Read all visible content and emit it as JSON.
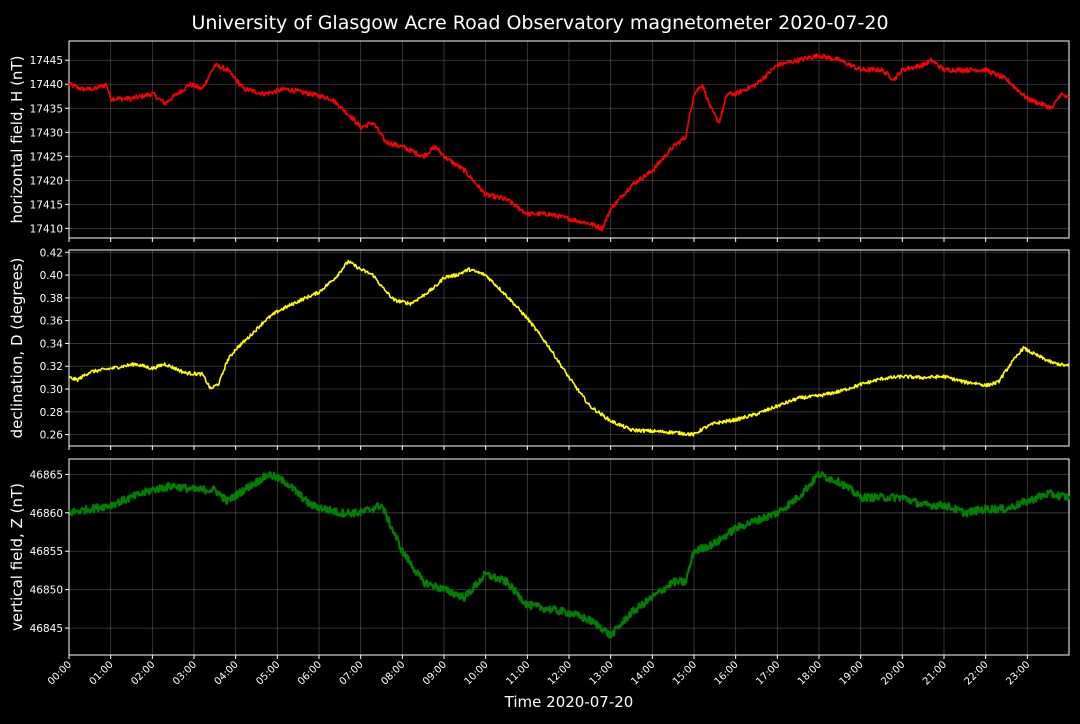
{
  "chart_data": {
    "type": "line",
    "title": "University of Glasgow Acre Road Observatory magnetometer 2020-07-20",
    "xlabel": "Time 2020-07-20",
    "x_unit": "hours",
    "xlim": [
      0,
      24
    ],
    "xticks": [
      "00:00",
      "01:00",
      "02:00",
      "03:00",
      "04:00",
      "05:00",
      "06:00",
      "07:00",
      "08:00",
      "09:00",
      "10:00",
      "11:00",
      "12:00",
      "13:00",
      "14:00",
      "15:00",
      "16:00",
      "17:00",
      "18:00",
      "19:00",
      "20:00",
      "21:00",
      "22:00",
      "23:00"
    ],
    "grid": true,
    "panels": [
      {
        "ylabel": "horizontal field, H (nT)",
        "color": "#ff0000",
        "ylim": [
          17408,
          17449
        ],
        "yticks": [
          17410,
          17415,
          17420,
          17425,
          17430,
          17435,
          17440,
          17445
        ],
        "noise": 0.5,
        "x": [
          0,
          0.3,
          0.6,
          0.9,
          1.0,
          1.5,
          2.0,
          2.3,
          2.6,
          2.9,
          3.2,
          3.5,
          3.8,
          4.2,
          4.7,
          5.2,
          5.8,
          6.3,
          6.8,
          7.0,
          7.3,
          7.6,
          8.0,
          8.5,
          8.8,
          9.0,
          9.5,
          10.0,
          10.5,
          11.0,
          11.5,
          12.0,
          12.5,
          12.8,
          13.0,
          13.5,
          14.0,
          14.5,
          14.8,
          15.0,
          15.2,
          15.4,
          15.6,
          15.8,
          16.0,
          16.5,
          17.0,
          17.5,
          18.0,
          18.5,
          19.0,
          19.5,
          19.8,
          20.0,
          20.5,
          20.7,
          21.0,
          21.5,
          22.0,
          22.5,
          23.0,
          23.3,
          23.6,
          23.8,
          24.0
        ],
        "y": [
          17440,
          17439,
          17439,
          17440,
          17437,
          17437,
          17438,
          17436,
          17438,
          17440,
          17439,
          17444,
          17443,
          17439,
          17438,
          17439,
          17438,
          17437,
          17433,
          17431,
          17432,
          17428,
          17427,
          17425,
          17427,
          17425,
          17422,
          17417,
          17416,
          17413,
          17413,
          17412,
          17411,
          17410,
          17414,
          17419,
          17422,
          17427,
          17429,
          17438,
          17440,
          17435,
          17432,
          17438,
          17438,
          17440,
          17444,
          17445,
          17446,
          17445,
          17443,
          17443,
          17441,
          17443,
          17444,
          17445,
          17443,
          17443,
          17443,
          17441,
          17437,
          17436,
          17435,
          17438,
          17437
        ]
      },
      {
        "ylabel": "declination, D (degrees)",
        "color": "#ffff00",
        "ylim": [
          0.25,
          0.422
        ],
        "yticks": [
          0.26,
          0.28,
          0.3,
          0.32,
          0.34,
          0.36,
          0.38,
          0.4,
          0.42
        ],
        "tick_format": "0.00",
        "noise": 0.0015,
        "x": [
          0,
          0.2,
          0.5,
          1.0,
          1.6,
          2.0,
          2.3,
          2.8,
          3.2,
          3.4,
          3.6,
          3.8,
          4.0,
          4.3,
          4.7,
          5.0,
          5.5,
          6.0,
          6.4,
          6.7,
          7.0,
          7.3,
          7.5,
          7.8,
          8.2,
          8.5,
          8.8,
          9.0,
          9.3,
          9.6,
          10.0,
          10.5,
          11.0,
          11.5,
          12.0,
          12.5,
          13.0,
          13.5,
          14.0,
          14.5,
          15.0,
          15.2,
          15.5,
          16.0,
          16.5,
          17.0,
          17.5,
          18.0,
          18.5,
          19.0,
          19.5,
          20.0,
          20.5,
          21.0,
          21.5,
          21.8,
          22.0,
          22.3,
          22.6,
          22.9,
          23.2,
          23.6,
          24.0
        ],
        "y": [
          0.31,
          0.308,
          0.315,
          0.318,
          0.322,
          0.318,
          0.322,
          0.314,
          0.313,
          0.3,
          0.305,
          0.325,
          0.335,
          0.345,
          0.36,
          0.368,
          0.377,
          0.385,
          0.398,
          0.412,
          0.405,
          0.4,
          0.39,
          0.378,
          0.375,
          0.382,
          0.39,
          0.398,
          0.4,
          0.405,
          0.4,
          0.382,
          0.362,
          0.338,
          0.31,
          0.285,
          0.272,
          0.264,
          0.263,
          0.262,
          0.26,
          0.265,
          0.27,
          0.273,
          0.278,
          0.285,
          0.292,
          0.294,
          0.298,
          0.304,
          0.309,
          0.311,
          0.31,
          0.311,
          0.306,
          0.305,
          0.303,
          0.306,
          0.322,
          0.336,
          0.33,
          0.323,
          0.32
        ]
      },
      {
        "ylabel": "vertical field, Z (nT)",
        "color": "#008000",
        "ylim": [
          46841.5,
          46867.0
        ],
        "yticks": [
          46845,
          46850,
          46855,
          46860,
          46865
        ],
        "noise": 0.5,
        "x": [
          0,
          0.5,
          1.0,
          1.5,
          2.0,
          2.5,
          3.0,
          3.5,
          3.8,
          4.2,
          4.8,
          5.2,
          5.8,
          6.5,
          7.0,
          7.5,
          8.0,
          8.5,
          9.0,
          9.5,
          10.0,
          10.5,
          11.0,
          11.5,
          12.0,
          12.5,
          12.8,
          13.0,
          13.5,
          14.0,
          14.5,
          14.8,
          15.0,
          15.5,
          16.0,
          16.5,
          17.0,
          17.5,
          18.0,
          18.5,
          19.0,
          19.5,
          20.0,
          20.5,
          21.0,
          21.5,
          22.0,
          22.5,
          23.0,
          23.5,
          24.0
        ],
        "y": [
          46860,
          46860.5,
          46861,
          46862,
          46863,
          46863.5,
          46863,
          46863,
          46861.5,
          46863,
          46865,
          46864,
          46861,
          46860,
          46860,
          46861,
          46855,
          46851,
          46850,
          46849,
          46852,
          46851,
          46848,
          46847.5,
          46847,
          46846,
          46845,
          46844,
          46847,
          46849,
          46851,
          46851,
          46855,
          46856,
          46858,
          46859,
          46860,
          46862,
          46865,
          46864,
          46862,
          46862,
          46862,
          46861,
          46861,
          46860,
          46860.5,
          46860.5,
          46861.5,
          46862.5,
          46862
        ]
      }
    ]
  }
}
